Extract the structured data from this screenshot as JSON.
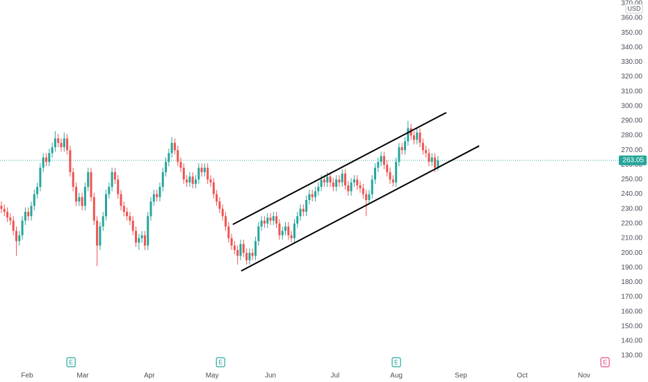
{
  "chart_data": {
    "type": "candlestick",
    "currency": "USD",
    "open": [
      232,
      230,
      228,
      224,
      222,
      215,
      208,
      212,
      222,
      228,
      225,
      232,
      240,
      245,
      258,
      265,
      262,
      268,
      272,
      278,
      275,
      272,
      278,
      270,
      255,
      245,
      235,
      238,
      232,
      245,
      255,
      238,
      222,
      205,
      218,
      225,
      240,
      245,
      255,
      250,
      240,
      232,
      228,
      225,
      222,
      215,
      207,
      210,
      212,
      205,
      225,
      235,
      240,
      238,
      245,
      255,
      262,
      268,
      275,
      270,
      262,
      258,
      250,
      248,
      252,
      247,
      250,
      258,
      255,
      258,
      250,
      248,
      240,
      235,
      230,
      225,
      218,
      210,
      205,
      202,
      198,
      206,
      200,
      195,
      200,
      198,
      208,
      218,
      222,
      220,
      224,
      222,
      225,
      220,
      212,
      215,
      218,
      212,
      210,
      220,
      225,
      230,
      228,
      236,
      240,
      238,
      242,
      245,
      250,
      248,
      252,
      248,
      245,
      250,
      248,
      254,
      246,
      242,
      248,
      250,
      246,
      244,
      240,
      236,
      240,
      250,
      258,
      262,
      266,
      260,
      255,
      250,
      248,
      262,
      272,
      270,
      276,
      285,
      280,
      277,
      282,
      275,
      270,
      268,
      262,
      265,
      258
    ],
    "high": [
      235,
      233,
      231,
      227,
      225,
      218,
      215,
      225,
      231,
      231,
      235,
      243,
      248,
      261,
      268,
      268,
      271,
      275,
      283,
      281,
      278,
      282,
      281,
      273,
      258,
      248,
      241,
      241,
      248,
      258,
      258,
      241,
      225,
      221,
      228,
      243,
      248,
      258,
      258,
      253,
      243,
      235,
      231,
      228,
      225,
      218,
      213,
      215,
      215,
      228,
      238,
      243,
      243,
      248,
      258,
      265,
      271,
      279,
      278,
      273,
      265,
      261,
      253,
      255,
      255,
      253,
      261,
      261,
      261,
      261,
      253,
      251,
      243,
      238,
      233,
      228,
      221,
      213,
      208,
      205,
      209,
      209,
      203,
      203,
      203,
      211,
      221,
      225,
      225,
      227,
      227,
      228,
      228,
      223,
      218,
      221,
      221,
      215,
      223,
      228,
      233,
      233,
      239,
      243,
      243,
      245,
      248,
      253,
      253,
      255,
      255,
      251,
      253,
      253,
      257,
      257,
      249,
      251,
      253,
      253,
      249,
      247,
      243,
      243,
      253,
      261,
      265,
      269,
      269,
      263,
      258,
      253,
      265,
      275,
      275,
      279,
      290,
      288,
      283,
      285,
      285,
      278,
      273,
      271,
      268,
      268,
      266
    ],
    "low": [
      227,
      225,
      221,
      219,
      212,
      198,
      205,
      209,
      219,
      222,
      222,
      229,
      237,
      242,
      255,
      259,
      259,
      265,
      269,
      272,
      269,
      269,
      267,
      252,
      242,
      232,
      232,
      229,
      229,
      242,
      235,
      219,
      191,
      202,
      215,
      222,
      237,
      242,
      247,
      237,
      229,
      225,
      222,
      219,
      212,
      204,
      202,
      207,
      202,
      202,
      222,
      232,
      235,
      235,
      242,
      252,
      259,
      265,
      267,
      259,
      255,
      247,
      245,
      245,
      244,
      244,
      247,
      252,
      252,
      247,
      245,
      237,
      232,
      227,
      222,
      215,
      207,
      202,
      199,
      192,
      195,
      197,
      192,
      192,
      195,
      195,
      205,
      215,
      217,
      217,
      219,
      219,
      217,
      209,
      209,
      212,
      209,
      207,
      207,
      217,
      222,
      225,
      225,
      233,
      235,
      235,
      239,
      242,
      245,
      245,
      245,
      242,
      242,
      245,
      245,
      243,
      239,
      239,
      245,
      243,
      241,
      237,
      225,
      233,
      237,
      247,
      255,
      259,
      257,
      252,
      247,
      245,
      245,
      259,
      267,
      267,
      273,
      277,
      274,
      274,
      272,
      267,
      265,
      259,
      259,
      255,
      256
    ],
    "close": [
      230,
      228,
      224,
      222,
      215,
      208,
      212,
      222,
      228,
      225,
      232,
      240,
      245,
      258,
      265,
      262,
      268,
      272,
      278,
      275,
      272,
      278,
      270,
      255,
      245,
      235,
      238,
      232,
      245,
      255,
      238,
      222,
      205,
      218,
      225,
      240,
      245,
      255,
      250,
      240,
      232,
      228,
      225,
      222,
      215,
      207,
      210,
      212,
      205,
      225,
      235,
      240,
      238,
      245,
      255,
      262,
      268,
      275,
      270,
      262,
      258,
      250,
      248,
      252,
      247,
      250,
      258,
      255,
      258,
      250,
      248,
      240,
      235,
      230,
      225,
      218,
      210,
      205,
      202,
      198,
      206,
      200,
      195,
      200,
      198,
      208,
      218,
      222,
      220,
      224,
      222,
      225,
      220,
      212,
      215,
      218,
      212,
      210,
      220,
      225,
      230,
      228,
      236,
      240,
      238,
      242,
      245,
      250,
      248,
      252,
      248,
      245,
      250,
      248,
      254,
      246,
      242,
      248,
      250,
      246,
      244,
      240,
      236,
      240,
      250,
      258,
      262,
      266,
      260,
      255,
      250,
      248,
      262,
      272,
      270,
      276,
      285,
      280,
      277,
      282,
      275,
      270,
      268,
      262,
      265,
      258,
      263.05
    ],
    "up_color": "#26a69a",
    "down_color": "#ef5350",
    "last_price": {
      "value": 263.05,
      "label": "263.05"
    },
    "last_price_color": "#26a69a",
    "xlim": [
      -0.465,
      206.5
    ],
    "xticks": [
      {
        "value": 8.6,
        "label": "Feb"
      },
      {
        "value": 27.2,
        "label": "Mar"
      },
      {
        "value": 49.5,
        "label": "Apr"
      },
      {
        "value": 70.5,
        "label": "May"
      },
      {
        "value": 90.0,
        "label": "Jun"
      },
      {
        "value": 111.6,
        "label": "Jul"
      },
      {
        "value": 132.1,
        "label": "Aug"
      },
      {
        "value": 153.7,
        "label": "Sep"
      },
      {
        "value": 174.2,
        "label": "Oct"
      },
      {
        "value": 194.9,
        "label": "Nov"
      }
    ],
    "ylim": [
      121.5,
      372.3
    ],
    "yticks": [
      {
        "value": 130,
        "label": "130.00"
      },
      {
        "value": 140,
        "label": "140.00"
      },
      {
        "value": 150,
        "label": "150.00"
      },
      {
        "value": 160,
        "label": "160.00"
      },
      {
        "value": 170,
        "label": "170.00"
      },
      {
        "value": 180,
        "label": "180.00"
      },
      {
        "value": 190,
        "label": "190.00"
      },
      {
        "value": 200,
        "label": "200.00"
      },
      {
        "value": 210,
        "label": "210.00"
      },
      {
        "value": 220,
        "label": "220.00"
      },
      {
        "value": 230,
        "label": "230.00"
      },
      {
        "value": 240,
        "label": "240.00"
      },
      {
        "value": 250,
        "label": "250.00"
      },
      {
        "value": 260,
        "label": "260.00"
      },
      {
        "value": 270,
        "label": "270.00"
      },
      {
        "value": 280,
        "label": "280.00"
      },
      {
        "value": 290,
        "label": "290.00"
      },
      {
        "value": 300,
        "label": "300.00"
      },
      {
        "value": 310,
        "label": "310.00"
      },
      {
        "value": 320,
        "label": "320.00"
      },
      {
        "value": 330,
        "label": "330.00"
      },
      {
        "value": 340,
        "label": "340.00"
      },
      {
        "value": 350,
        "label": "350.00"
      },
      {
        "value": 360,
        "label": "360.00"
      },
      {
        "value": 370,
        "label": "370.00"
      }
    ],
    "grid": false,
    "trendlines": [
      {
        "x": [
          77.4,
          148.8
        ],
        "y": [
          219.4,
          295.6
        ],
        "color": "#000000"
      },
      {
        "x": [
          80.2,
          159.8
        ],
        "y": [
          187.7,
          272.9
        ],
        "color": "#000000"
      }
    ],
    "events": [
      {
        "x": 23.3,
        "label": "E",
        "color": "#26a69a"
      },
      {
        "x": 73.3,
        "label": "E",
        "color": "#26a69a"
      },
      {
        "x": 132.1,
        "label": "E",
        "color": "#26a69a"
      },
      {
        "x": 201.9,
        "label": "E",
        "color": "#e84c8b"
      }
    ]
  }
}
